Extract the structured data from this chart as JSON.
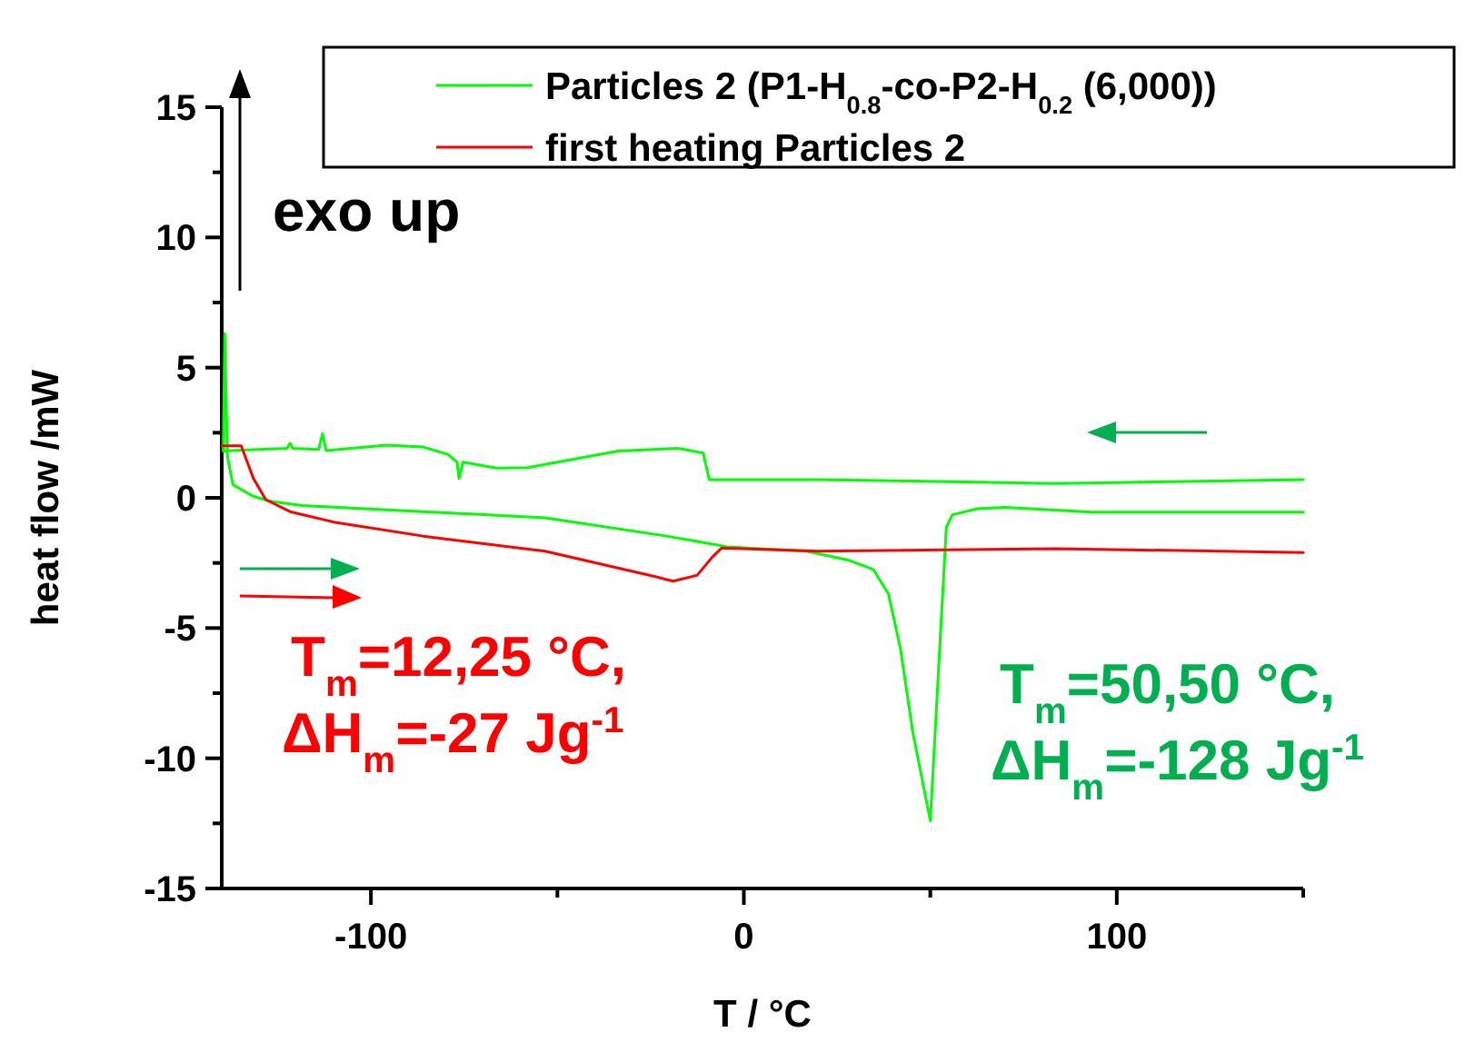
{
  "chart_data": {
    "type": "line",
    "xlabel": "T / °C",
    "ylabel": "heat flow /mW",
    "xlim": [
      -140,
      150
    ],
    "xticks": [
      -100,
      {
        "value": -50,
        "label": null
      },
      0,
      {
        "value": 50,
        "label": null
      },
      100,
      {
        "value": 150,
        "label": null
      }
    ],
    "ylim": [
      -15,
      15
    ],
    "yticks": [
      -15,
      {
        "value": -12.5,
        "label": null
      },
      -10,
      {
        "value": -7.5,
        "label": null
      },
      -5,
      {
        "value": -2.5,
        "label": null
      },
      0,
      {
        "value": 2.5,
        "label": null
      },
      5,
      {
        "value": 7.5,
        "label": null
      },
      10,
      {
        "value": 12.5,
        "label": null
      },
      15
    ],
    "grid": false,
    "legend": "top right",
    "line_style": "solid",
    "marker": "none",
    "annotations": [
      "exo up",
      "T$_{m}$=12,25 °C,",
      "ΔH$_{m}$=-27 Jg$^{-1}$",
      "T$_{m}$=50,50 °C,",
      "ΔH$_{m}$=-128 Jg$^{-1}$"
    ],
    "series": [
      {
        "name": "Particles 2 (P1-H$_{0.8}$-co-P2-H$_{0.2}$ (6,000))",
        "color": "#00ff00",
        "x": [
          150,
          83.6,
          20,
          -9.3,
          -10.9,
          -17.6,
          -33.7,
          -58,
          -66.3,
          -75.3,
          -76.4,
          -76.9,
          -79.4,
          -86,
          -95.8,
          -112,
          -113,
          -114,
          -121,
          -121.7,
          -122.5,
          -139.6,
          -139.2,
          -138.5,
          -137,
          -131.5,
          -126.6,
          -118.5,
          -86,
          -53.3,
          -20.7,
          -4.4,
          16.8,
          28.2,
          34.7,
          38.8,
          42,
          45.3,
          50,
          52.7,
          54.3,
          55.9,
          62.6,
          70,
          93.4,
          150
        ],
        "values": [
          0.7,
          0.55,
          0.7,
          0.7,
          1.72,
          1.9,
          1.8,
          1.16,
          1.14,
          1.37,
          0.74,
          1.37,
          1.67,
          1.95,
          2.02,
          1.81,
          2.46,
          1.86,
          1.9,
          2.1,
          1.9,
          1.8,
          6.3,
          1.6,
          0.5,
          0.05,
          -0.14,
          -0.3,
          -0.53,
          -0.77,
          -1.47,
          -1.88,
          -2.05,
          -2.4,
          -2.75,
          -3.7,
          -5.8,
          -9,
          -12.4,
          -5.3,
          -1.12,
          -0.65,
          -0.42,
          -0.37,
          -0.55,
          -0.55
        ]
      },
      {
        "name": "first heating Particles 2",
        "color": "#ff0000",
        "x": [
          -140,
          -134.8,
          -131.5,
          -128.2,
          -121.7,
          -110,
          -86,
          -53.3,
          -24,
          -19,
          -12.5,
          -8.5,
          -6,
          20,
          83.6,
          150
        ],
        "values": [
          2.0,
          2.0,
          0.74,
          -0.07,
          -0.53,
          -0.93,
          -1.47,
          -2.05,
          -3.02,
          -3.2,
          -2.97,
          -2.28,
          -1.93,
          -2.05,
          -1.95,
          -2.1
        ]
      }
    ]
  }
}
